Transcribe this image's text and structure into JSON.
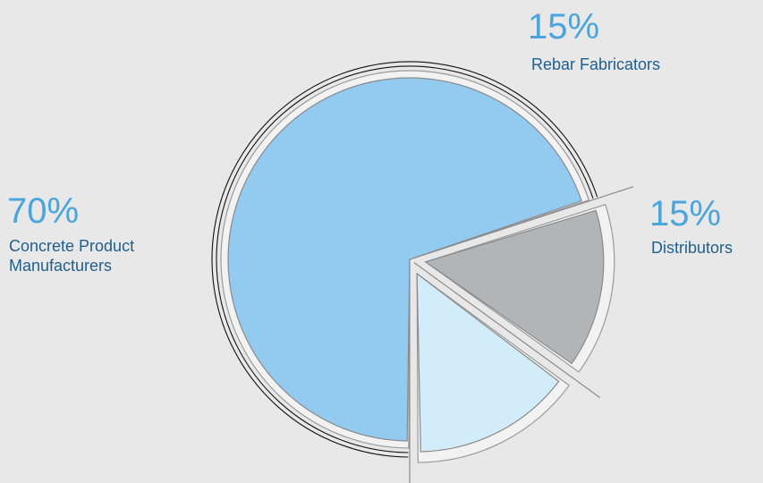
{
  "chart_data": {
    "type": "pie",
    "title": "",
    "slices": [
      {
        "percent_label": "70%",
        "label_lines": [
          "Concrete Product",
          "Manufacturers"
        ],
        "value": 70,
        "color": "#93caef"
      },
      {
        "percent_label": "15%",
        "label_lines": [
          "Rebar Fabricators"
        ],
        "value": 15,
        "color": "#b2b5b8"
      },
      {
        "percent_label": "15%",
        "label_lines": [
          "Distributors"
        ],
        "value": 15,
        "color": "#d3ecfa"
      }
    ],
    "colors": {
      "percent_text": "#4aa5dc",
      "label_text": "#1f5f8e",
      "background": "#e8e8e8"
    }
  }
}
